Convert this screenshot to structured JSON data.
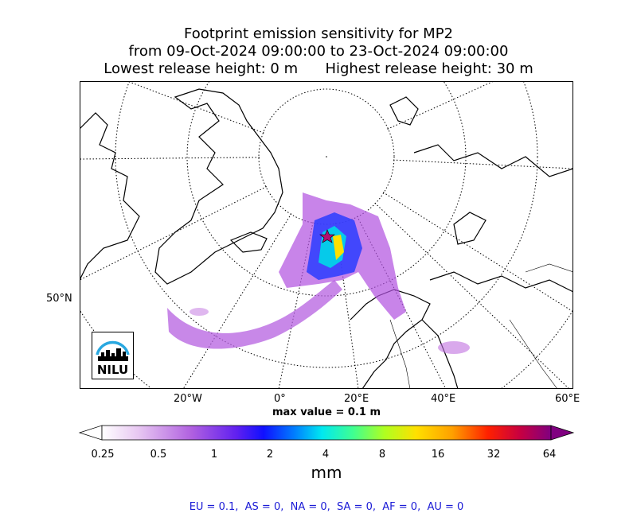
{
  "title": {
    "line1": "Footprint emission sensitivity for MP2",
    "line2": "from 09-Oct-2024 09:00:00 to 23-Oct-2024 09:00:00",
    "line3": "Lowest release height: 0 m      Highest release height: 30 m"
  },
  "map": {
    "projection": "polar stereographic",
    "lon_labels": [
      "20°W",
      "0°",
      "20°E",
      "40°E",
      "60°E"
    ],
    "lat_labels": [
      "50°N"
    ],
    "graticule": "dotted",
    "max_value_text": "max value = 0.1 m",
    "release_marker": "star",
    "colors": {
      "coastline": "#000000",
      "plume_low": "#c070e0",
      "plume_mid": "#1a40ff",
      "plume_high": "#00e0e0",
      "plume_peak": "#ffe000"
    }
  },
  "logo": {
    "text": "NILU",
    "arc_color": "#29a8e0"
  },
  "colorbar": {
    "ticks": [
      "0.25",
      "0.5",
      "1",
      "2",
      "4",
      "8",
      "16",
      "32",
      "64"
    ],
    "unit": "mm",
    "colors": [
      "#ffffff",
      "#d08ae6",
      "#9b30e0",
      "#3a00ff",
      "#0080ff",
      "#00e6ff",
      "#40ff90",
      "#b0ff00",
      "#ffe000",
      "#ffa000",
      "#ff4000",
      "#ff0000",
      "#c00040",
      "#800080"
    ],
    "extend": "both"
  },
  "footer": {
    "text": "EU = 0.1,  AS = 0,  NA = 0,  SA = 0,  AF = 0,  AU = 0"
  }
}
